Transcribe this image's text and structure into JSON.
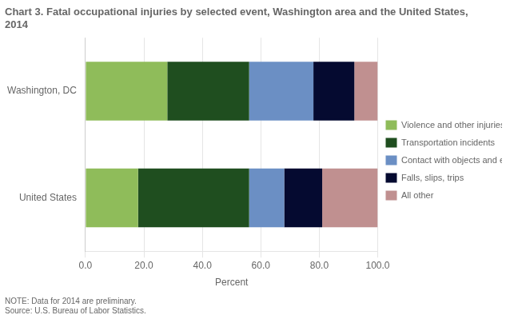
{
  "chart_data": {
    "type": "bar",
    "orientation": "horizontal",
    "stacked": true,
    "title": "Chart 3. Fatal occupational injuries by selected event, Washington area and the United States, 2014",
    "categories": [
      "Washington, DC",
      "United States"
    ],
    "series": [
      {
        "name": "Violence and other injuries by persons or animals",
        "color": "#8FBC5A",
        "values": [
          28.0,
          18.0
        ]
      },
      {
        "name": "Transportation incidents",
        "color": "#1F4E1F",
        "values": [
          28.0,
          38.0
        ]
      },
      {
        "name": "Contact with objects and equipment",
        "color": "#6B8FC4",
        "values": [
          22.0,
          12.0
        ]
      },
      {
        "name": "Falls, slips, trips",
        "color": "#050A30",
        "values": [
          14.0,
          13.0
        ]
      },
      {
        "name": "All other",
        "color": "#C09090",
        "values": [
          8.0,
          19.0
        ]
      }
    ],
    "xlabel": "Percent",
    "xlim": [
      0,
      100
    ],
    "xticks": [
      {
        "value": 0,
        "label": "0.0"
      },
      {
        "value": 20,
        "label": "20.0"
      },
      {
        "value": 40,
        "label": "40.0"
      },
      {
        "value": 60,
        "label": "60.0"
      },
      {
        "value": 80,
        "label": "80.0"
      },
      {
        "value": 100,
        "label": "100.0"
      }
    ],
    "grid": true,
    "legend": "right",
    "note": "NOTE: Data for 2014 are preliminary.\nSource: U.S. Bureau of Labor Statistics."
  }
}
